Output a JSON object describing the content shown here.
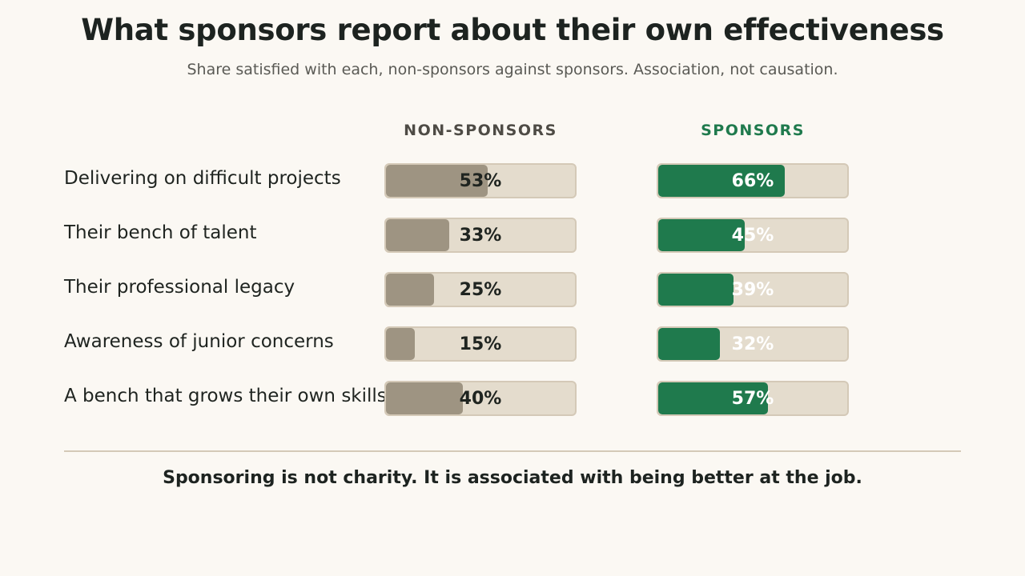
{
  "title": "What sponsors report about their own effectiveness",
  "subtitle": "Share satisfied with each, non-sponsors against sponsors. Association, not causation.",
  "footer": "Sponsoring is not charity. It is associated with being better at the job.",
  "colors": {
    "non_sponsor_fill": "#9e9482",
    "sponsor_fill": "#1f7a4d",
    "track": "#e4dccd",
    "background": "#fbf8f3"
  },
  "chart_data": {
    "type": "bar",
    "orientation": "horizontal",
    "unit": "%",
    "xlim": [
      0,
      100
    ],
    "grid": false,
    "categories": [
      "Delivering on difficult projects",
      "Their bench of talent",
      "Their professional legacy",
      "Awareness of junior concerns",
      "A bench that grows their own skills"
    ],
    "series": [
      {
        "name": "NON-SPONSORS",
        "values": [
          53,
          33,
          25,
          15,
          40
        ],
        "labels": [
          "53%",
          "33%",
          "25%",
          "15%",
          "40%"
        ]
      },
      {
        "name": "SPONSORS",
        "values": [
          66,
          45,
          39,
          32,
          57
        ],
        "labels": [
          "66%",
          "45%",
          "39%",
          "32%",
          "57%"
        ]
      }
    ]
  }
}
